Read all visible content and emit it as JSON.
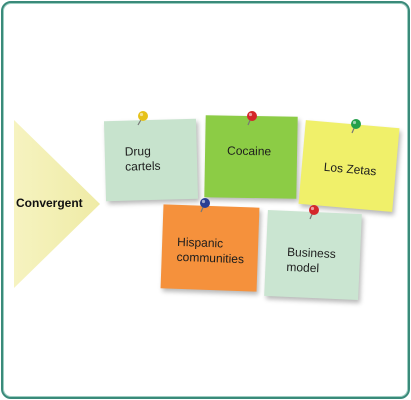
{
  "diagram": {
    "label": "Convergent",
    "notes": [
      {
        "text_lines": [
          "Drug",
          "cartels"
        ],
        "color": "#c7e3cd",
        "pin_color": "#e6c21a"
      },
      {
        "text_lines": [
          "Cocaine"
        ],
        "color": "#8ccc45",
        "pin_color": "#d4262a"
      },
      {
        "text_lines": [
          "Los Zetas"
        ],
        "color": "#f0f06a",
        "pin_color": "#25a04a"
      },
      {
        "text_lines": [
          "Hispanic",
          "communities"
        ],
        "color": "#f5913c",
        "pin_color": "#2a3e93"
      },
      {
        "text_lines": [
          "Business",
          "model"
        ],
        "color": "#cae5d1",
        "pin_color": "#d4262a"
      }
    ],
    "arrow_color": "#f4f1b4",
    "border_color": "#3a8a7a"
  }
}
